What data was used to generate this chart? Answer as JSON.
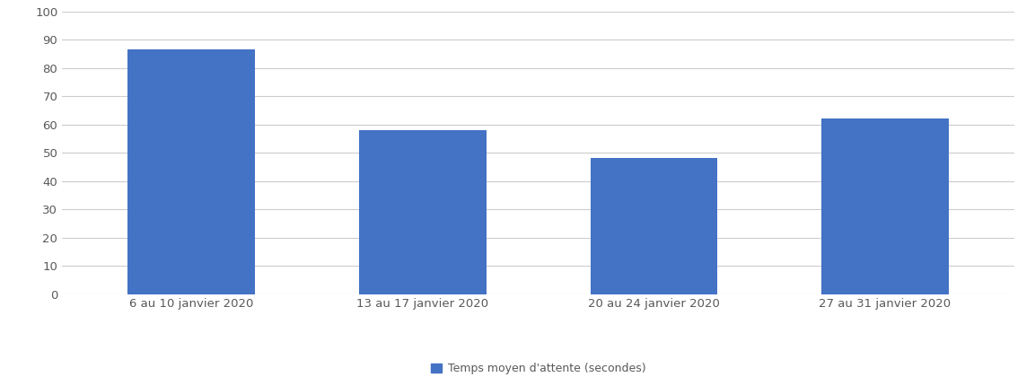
{
  "categories": [
    "6 au 10 janvier 2020",
    "13 au 17 janvier 2020",
    "20 au 24 janvier 2020",
    "27 au 31 janvier 2020"
  ],
  "values": [
    86.5,
    58,
    48,
    62
  ],
  "bar_color": "#4472C4",
  "ylim": [
    0,
    100
  ],
  "yticks": [
    0,
    10,
    20,
    30,
    40,
    50,
    60,
    70,
    80,
    90,
    100
  ],
  "legend_label": "Temps moyen d'attente (secondes)",
  "legend_color": "#4472C4",
  "background_color": "#ffffff",
  "grid_color": "#cccccc",
  "bar_width": 0.55,
  "tick_fontsize": 9.5,
  "legend_fontsize": 9,
  "xlabel_color": "#595959"
}
